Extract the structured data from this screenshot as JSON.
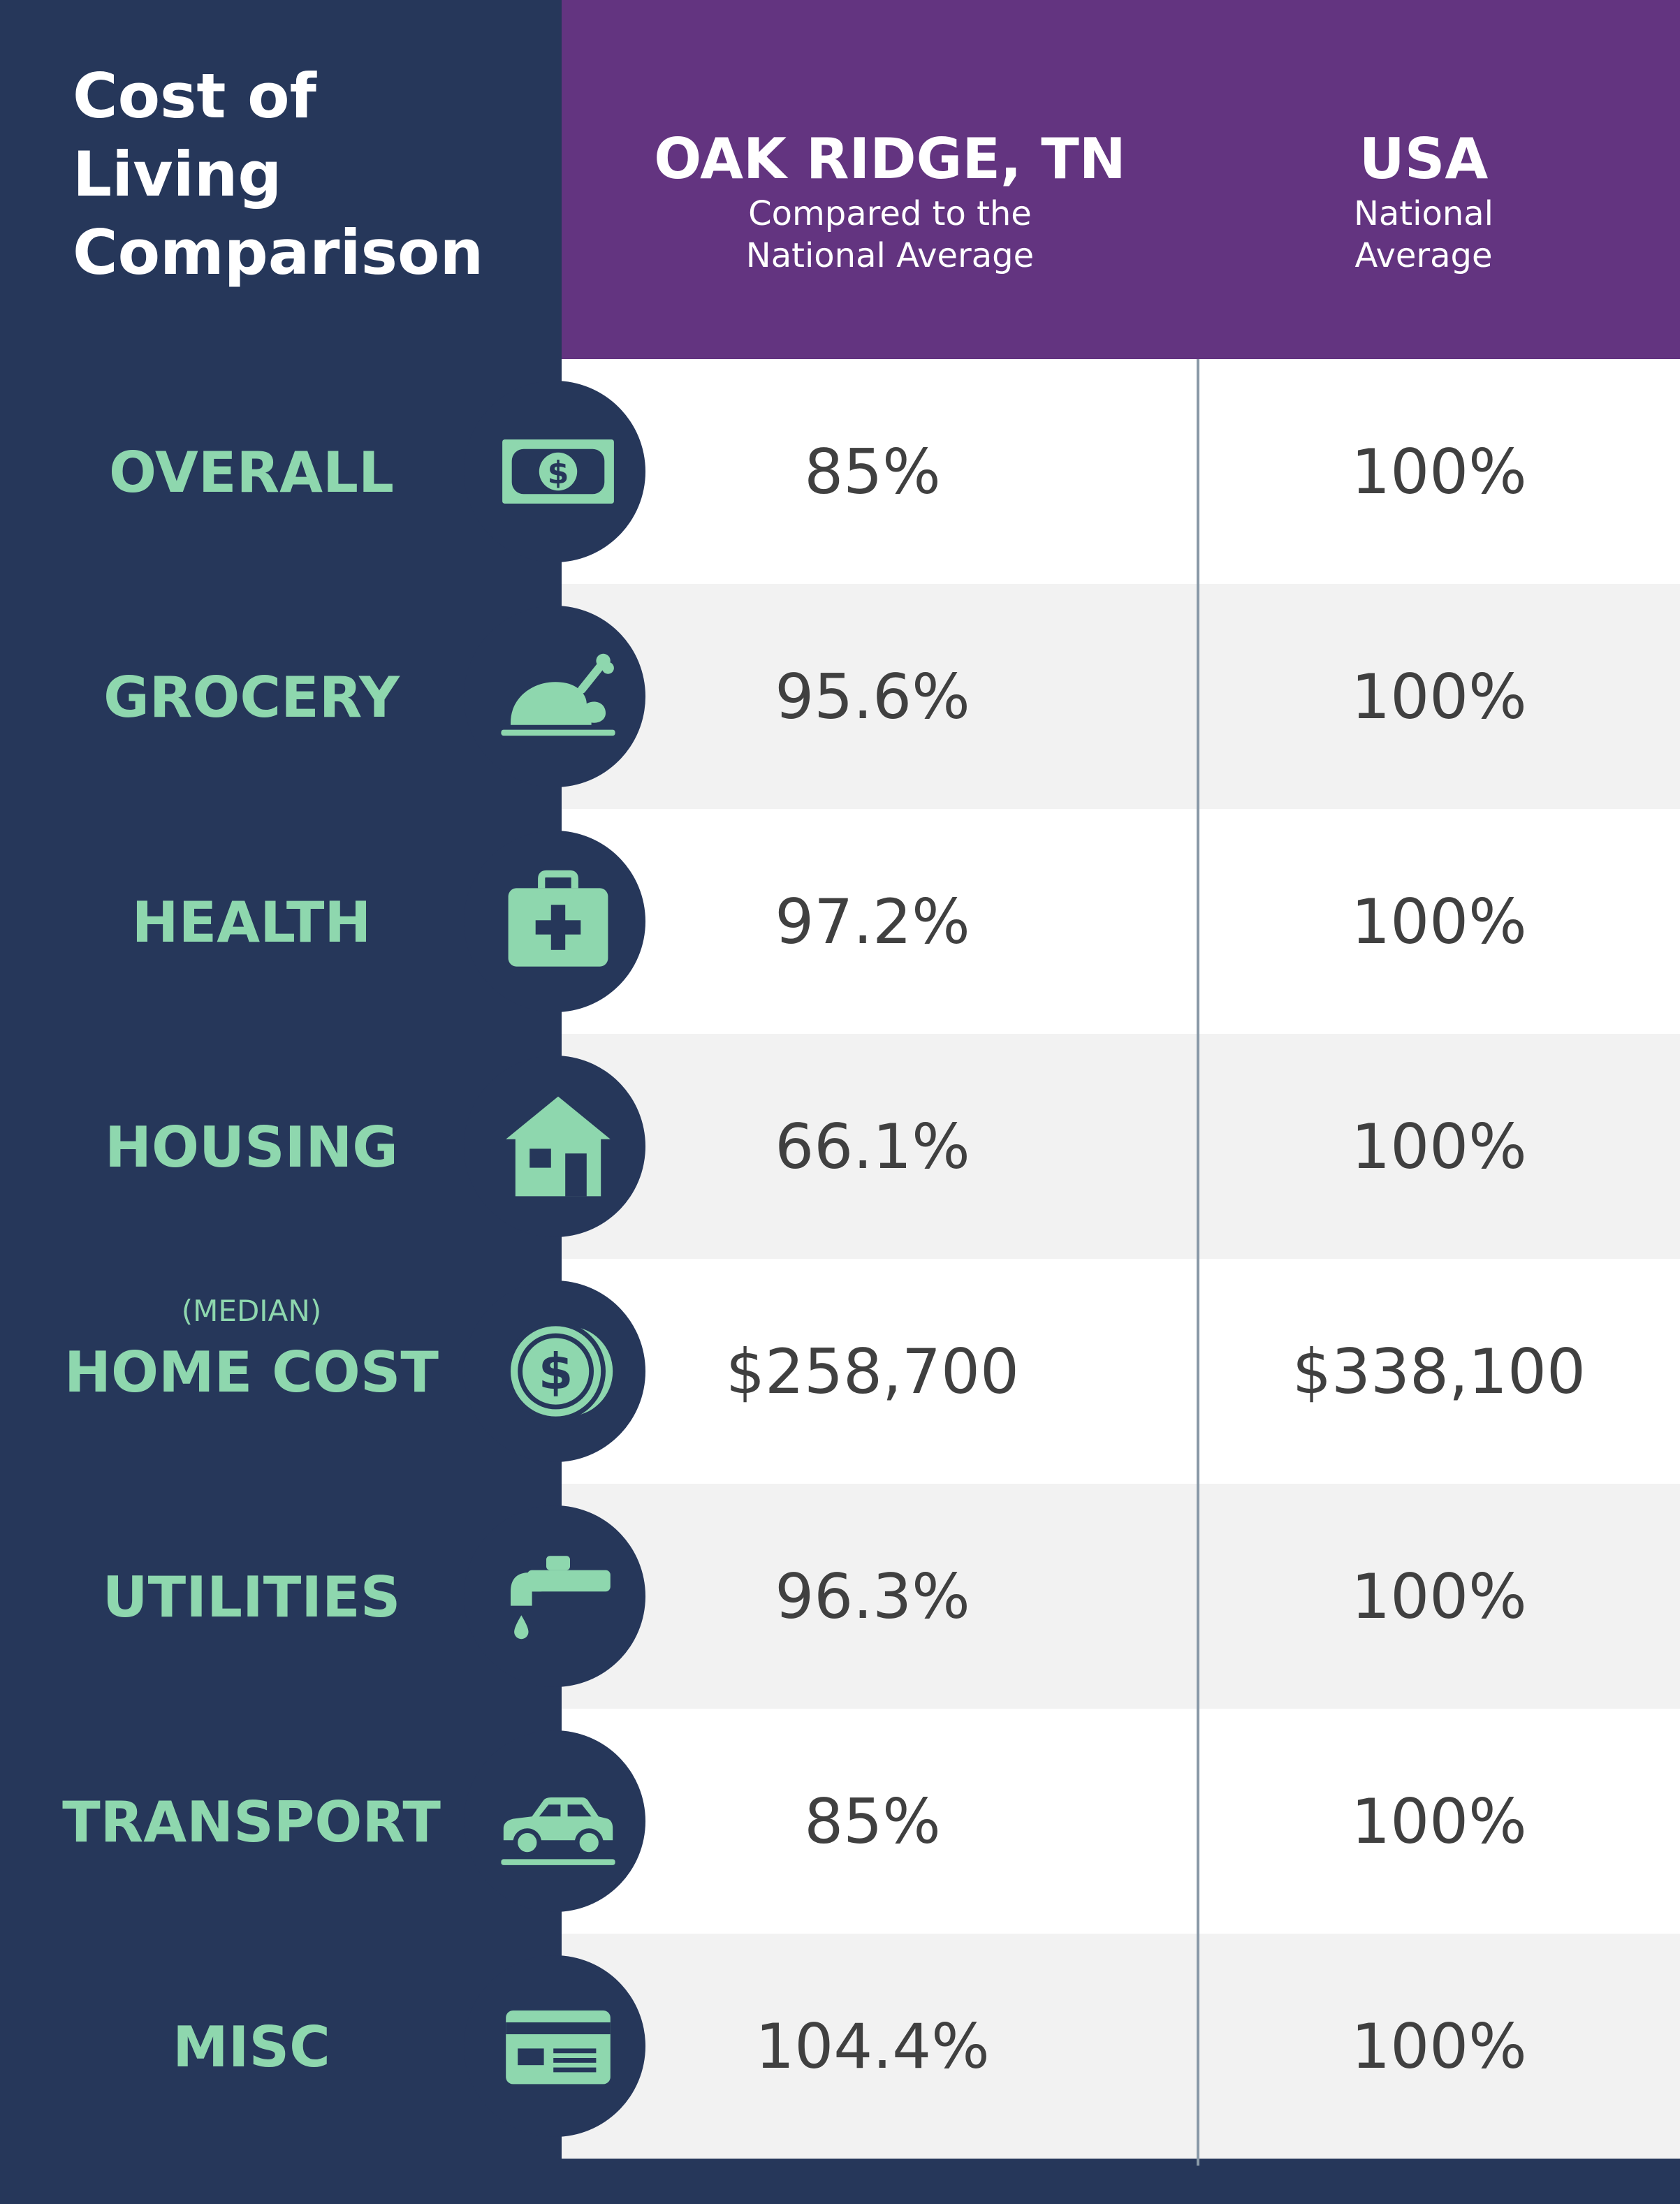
{
  "title": {
    "line1": "Cost of",
    "line2": "Living",
    "line3": "Comparison"
  },
  "header": {
    "oak": {
      "title": "OAK RIDGE, TN",
      "subtitle": "Compared to the\nNational Average"
    },
    "usa": {
      "title": "USA",
      "subtitle": "National\nAverage"
    }
  },
  "colors": {
    "navy": "#26375a",
    "purple": "#633480",
    "mint": "#8ed7ae",
    "text": "#404040",
    "stripe": "#f2f2f2"
  },
  "rows": [
    {
      "label": "OVERALL",
      "icon": "dollar-bill-icon",
      "oak": "85%",
      "usa": "100%"
    },
    {
      "label": "GROCERY",
      "icon": "roast-chicken-icon",
      "oak": "95.6%",
      "usa": "100%"
    },
    {
      "label": "HEALTH",
      "icon": "medical-kit-icon",
      "oak": "97.2%",
      "usa": "100%"
    },
    {
      "label": "HOUSING",
      "icon": "house-icon",
      "oak": "66.1%",
      "usa": "100%"
    },
    {
      "label": "HOME COST",
      "sublabel": "(MEDIAN)",
      "icon": "dollar-coin-icon",
      "oak": "$258,700",
      "usa": "$338,100"
    },
    {
      "label": "UTILITIES",
      "icon": "water-faucet-icon",
      "oak": "96.3%",
      "usa": "100%"
    },
    {
      "label": "TRANSPORT",
      "icon": "car-icon",
      "oak": "85%",
      "usa": "100%"
    },
    {
      "label": "MISC",
      "icon": "credit-card-icon",
      "oak": "104.4%",
      "usa": "100%"
    }
  ]
}
